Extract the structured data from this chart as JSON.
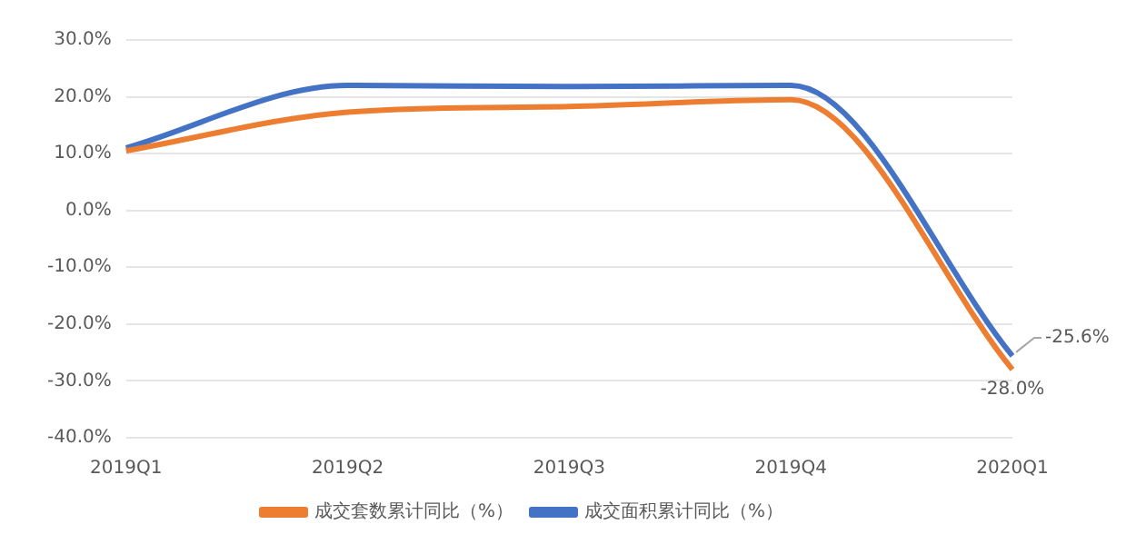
{
  "chart_data": {
    "type": "line",
    "categories": [
      "2019Q1",
      "2019Q2",
      "2019Q3",
      "2019Q4",
      "2020Q1"
    ],
    "series": [
      {
        "name": "成交套数累计同比（%）",
        "color": "#ed7d31",
        "values": [
          10.5,
          17.3,
          18.3,
          19.5,
          -28.0
        ],
        "value_labels": [
          null,
          null,
          null,
          null,
          "-28.0%"
        ]
      },
      {
        "name": "成交面积累计同比（%）",
        "color": "#4472c4",
        "values": [
          11.0,
          22.0,
          21.8,
          22.0,
          -25.6
        ],
        "value_labels": [
          null,
          null,
          null,
          null,
          "-25.6%"
        ]
      }
    ],
    "ylim": [
      -40,
      30
    ],
    "yticks": [
      {
        "value": -40,
        "label": "-40.0%"
      },
      {
        "value": -30,
        "label": "-30.0%"
      },
      {
        "value": -20,
        "label": "-20.0%"
      },
      {
        "value": -10,
        "label": "-10.0%"
      },
      {
        "value": 0,
        "label": "0.0%"
      },
      {
        "value": 10,
        "label": "10.0%"
      },
      {
        "value": 20,
        "label": "20.0%"
      },
      {
        "value": 30,
        "label": "30.0%"
      }
    ],
    "grid": "y",
    "legend": "bottom",
    "marker": "none",
    "line_style": "solid"
  }
}
